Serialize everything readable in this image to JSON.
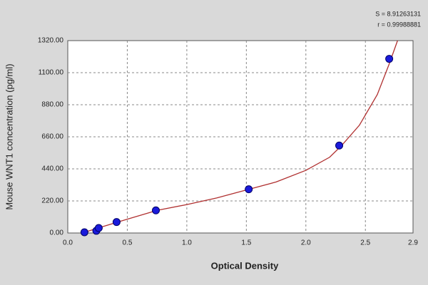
{
  "chart_data": {
    "type": "scatter",
    "xlabel": "Optical Density",
    "ylabel": "Mouse WNT1 concentration (pg/ml)",
    "annotations": [
      "S = 8.91263131",
      "r = 0.99988881"
    ],
    "x": [
      0.14,
      0.24,
      0.26,
      0.41,
      0.74,
      1.52,
      2.28,
      2.7
    ],
    "values": [
      5,
      15,
      34,
      75,
      155,
      300,
      600,
      1195
    ],
    "color": "#1a1adb",
    "fit": {
      "color": "#b03030",
      "x": [
        0.12,
        0.3,
        0.5,
        0.75,
        1.0,
        1.25,
        1.5,
        1.75,
        2.0,
        2.2,
        2.3,
        2.45,
        2.6,
        2.7,
        2.77
      ],
      "values": [
        0,
        45,
        95,
        155,
        195,
        240,
        295,
        350,
        430,
        520,
        600,
        740,
        950,
        1160,
        1320
      ]
    },
    "xlim": [
      0,
      2.9
    ],
    "xticks": [
      {
        "value": 0,
        "label": "0.0"
      },
      0.5,
      {
        "value": 1,
        "label": "1.0"
      },
      1.5,
      {
        "value": 2,
        "label": "2.0"
      },
      2.5,
      2.9
    ],
    "ylim": [
      0,
      1320
    ],
    "yticks": [
      {
        "value": 0,
        "label": "0.00"
      },
      {
        "value": 220,
        "label": "220.00"
      },
      {
        "value": 440,
        "label": "440.00"
      },
      {
        "value": 660,
        "label": "660.00"
      },
      {
        "value": 880,
        "label": "880.00"
      },
      {
        "value": 1100,
        "label": "1100.00"
      },
      {
        "value": 1320,
        "label": "1320.00"
      }
    ],
    "grid": true
  }
}
